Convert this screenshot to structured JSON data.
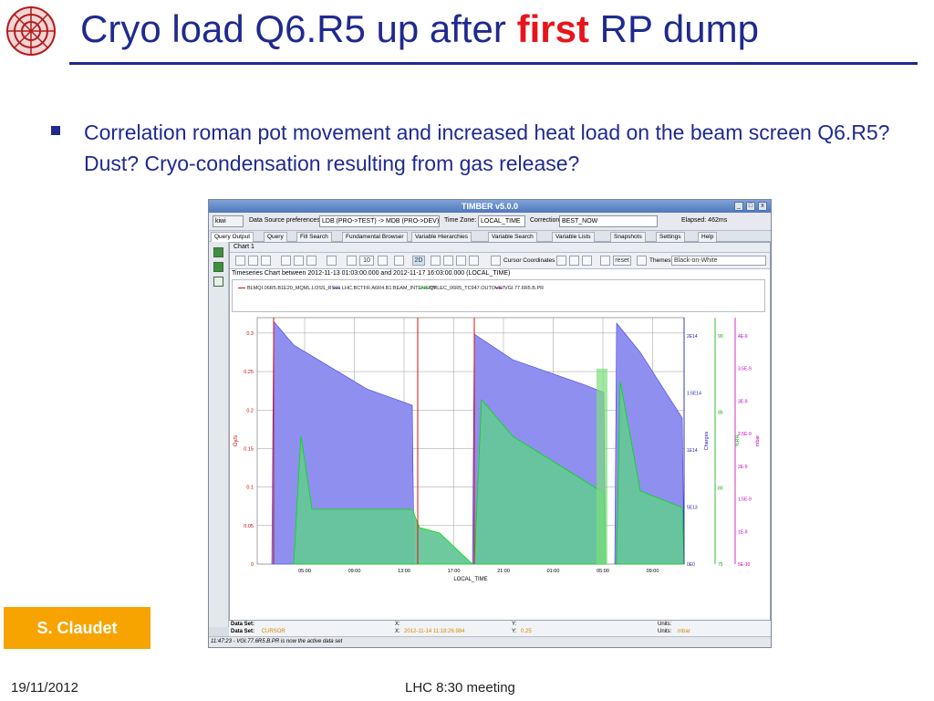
{
  "slide": {
    "title_pre": "Cryo load Q6.R5 up after ",
    "title_emph": "first",
    "title_post": " RP dump",
    "bullet": "Correlation roman pot movement and increased heat load on the beam screen Q6.R5? Dust? Cryo-condensation resulting from gas release?",
    "author": "S. Claudet",
    "date": "19/11/2012",
    "meeting": "LHC 8:30 meeting"
  },
  "app": {
    "window_title": "TIMBER v5.0.0",
    "kiwi_label": "kiwi",
    "data_source_label": "Data Source preferences:",
    "data_source_value": "LDB (PRO->TEST) -> MDB (PRO->DEV)",
    "time_zone_label": "Time Zone:",
    "time_zone_value": "LOCAL_TIME",
    "correction_label": "Correction",
    "correction_value": "BEST_NOW",
    "elapsed": "Elapsed: 462ms",
    "tabs": [
      "Query Output",
      "Query",
      "Fill Search",
      "Fundamental Browser",
      "Variable Hierarchies",
      "Variable Search",
      "Variable Lists",
      "Snapshots",
      "Settings",
      "Help"
    ],
    "chart_window_title": "Chart 1",
    "zoom_value": "10",
    "btn_2d": "2D",
    "cursor_coords": "Cursor Coordinates",
    "reset": "reset",
    "themes_label": "Themes",
    "themes_value": "Black-on-White",
    "chart_caption": "Timeseries Chart between 2012-11-13 01:03:00.000 and 2012-11-17 16:03:00.000 (LOCAL_TIME)",
    "data_set_label": "Data Set:",
    "data_set_2": "CURSOR",
    "x_label": "X:",
    "x_value_2": "2012-11-14 11:18:26.984",
    "y_label": "Y:",
    "y_value_2": "0.25",
    "units_label": "Units:",
    "units_value_2": "mbar",
    "status": "11:47:23 - VGI.77.6R5.B.PR is now the active data set"
  },
  "chart_data": {
    "type": "line",
    "title": "Timeseries Chart between 2012-11-13 01:03:00.000 and 2012-11-17 16:03:00.000 (LOCAL_TIME)",
    "xlabel": "LOCAL_TIME",
    "x_ticks": [
      "05:00",
      "09:00",
      "13:00",
      "17:00",
      "21:00",
      "01:00",
      "05:00",
      "09:00"
    ],
    "series": [
      {
        "name": "BLMQI.06R5.B1E20_MQML.LOSS_RS01",
        "color": "#e01010",
        "axis": "Gy/s"
      },
      {
        "name": "LHC.BCTFR.A6R4.B1:BEAM_INTENSITY",
        "color": "#4040e0",
        "axis": "Charges"
      },
      {
        "name": "QRLEC_06R5_TC947.OUTOVST",
        "color": "#00e000",
        "axis": "%RH"
      },
      {
        "name": "VGI.77.6R5.B.PR",
        "color": "#c000c0",
        "axis": "mbar"
      }
    ],
    "axes": {
      "left": {
        "label": "Gy/s",
        "ticks": [
          "0",
          "0.05",
          "0.1",
          "0.15",
          "0.2",
          "0.25",
          "0.3"
        ],
        "ylim": [
          0,
          0.32
        ]
      },
      "charges": {
        "label": "Charges",
        "ticks": [
          "0E0",
          "5E13",
          "1E14",
          "1.5E14",
          "2E14"
        ]
      },
      "green": {
        "label": "%RH",
        "ticks": [
          "75",
          "80",
          "85",
          "90"
        ]
      },
      "mbar": {
        "label": "mbar",
        "ticks": [
          "5E-10",
          "1E-9",
          "1.5E-9",
          "2E-9",
          "2.5E-9",
          "3E-9",
          "3.5E-9",
          "4E-9"
        ]
      }
    }
  }
}
